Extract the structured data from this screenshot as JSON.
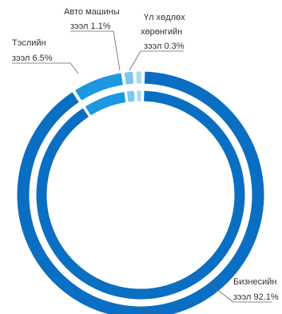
{
  "chart_data": {
    "type": "pie",
    "style": "double-ring donut",
    "slices": [
      {
        "label_line1": "Бизнесийн",
        "label_line2": "зээл 92.1%",
        "value": 92.1,
        "color": "#0a6fc2"
      },
      {
        "label_line1": "Тэслийн",
        "label_line2": "зээл 6.5%",
        "value": 6.5,
        "color": "#1b98e0"
      },
      {
        "label_line1": "Авто машины",
        "label_line2": "зээл 1.1%",
        "value": 1.1,
        "color": "#7cc6ee"
      },
      {
        "label_line1": "Үл хөдлөх",
        "label_line2": "хөрөнгийн",
        "label_line3": "зээл 0.3%",
        "value": 0.3,
        "color": "#a8dcf5"
      }
    ],
    "legend": "none",
    "grid": false
  }
}
